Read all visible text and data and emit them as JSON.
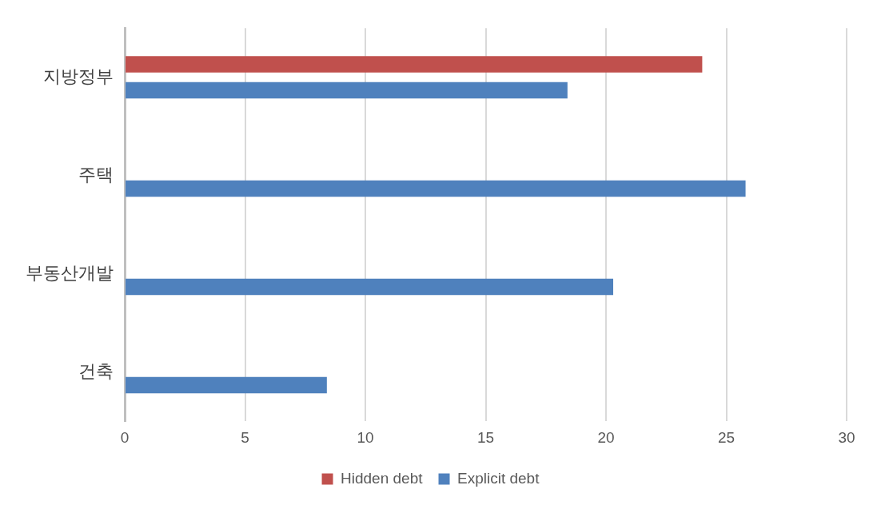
{
  "chart_data": {
    "type": "bar",
    "orientation": "horizontal",
    "categories": [
      "지방정부",
      "주택",
      "부동산개발",
      "건축"
    ],
    "series": [
      {
        "name": "Hidden debt",
        "color": "#c0504d",
        "values": [
          24,
          null,
          null,
          null
        ]
      },
      {
        "name": "Explicit debt",
        "color": "#4f81bd",
        "values": [
          18.4,
          25.8,
          20.3,
          8.4
        ]
      }
    ],
    "xlim": [
      0,
      30
    ],
    "xticks": [
      0,
      5,
      10,
      15,
      20,
      25,
      30
    ],
    "grid": "x",
    "legend": "bottom"
  }
}
